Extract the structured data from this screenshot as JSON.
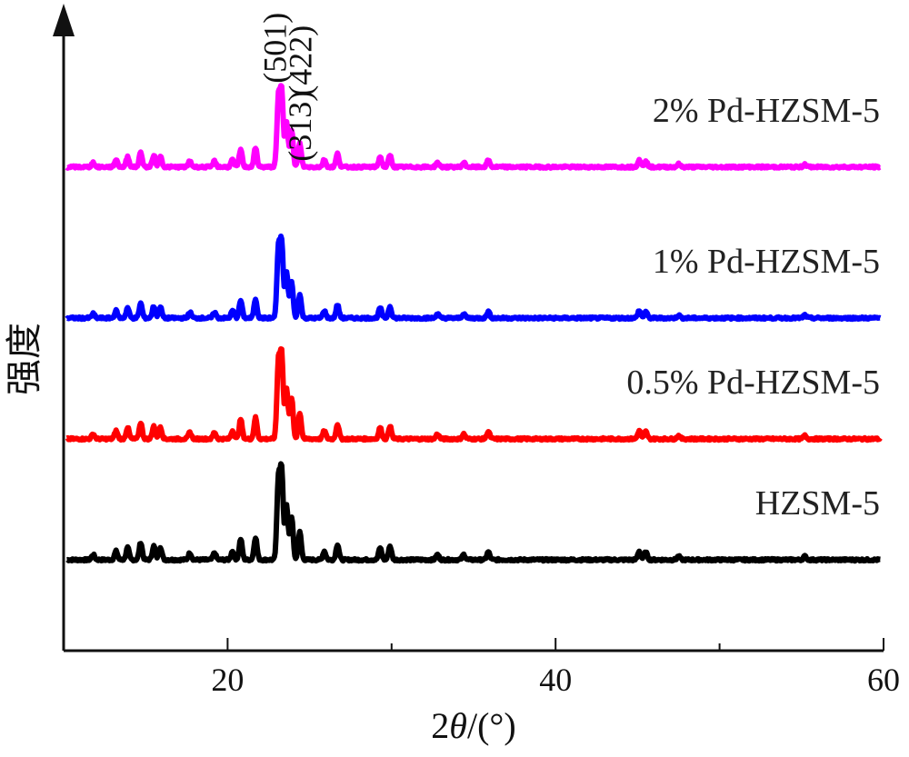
{
  "chart_data": {
    "type": "line",
    "xlabel": "2θ/(°)",
    "xlabel_prefix": "2",
    "xlabel_theta": "θ",
    "xlabel_suffix": "/(°)",
    "ylabel": "强度",
    "xlim": [
      10,
      60
    ],
    "x_ticks": [
      20,
      40,
      60
    ],
    "y_ticks": [],
    "grid": false,
    "legend": "none",
    "peaks_deg": [
      7.9,
      8.8,
      14.8,
      20.9,
      22.1,
      23.1,
      23.3,
      23.7,
      24.0,
      24.4,
      26.7,
      29.3,
      29.9,
      45.1,
      45.5
    ],
    "peak_labels": [
      {
        "text": "(501)",
        "x": 23.1
      },
      {
        "text": "(313)",
        "x": 24.4
      },
      {
        "text": "(422)",
        "x": 25.0
      }
    ],
    "series": [
      {
        "name": "HZSM-5",
        "color": "#000000",
        "baseline": 0.0,
        "scale": 1.0
      },
      {
        "name": "0.5% Pd-HZSM-5",
        "color": "#ff0000",
        "baseline": 1.0,
        "scale": 0.95
      },
      {
        "name": "1% Pd-HZSM-5",
        "color": "#0000ff",
        "baseline": 2.0,
        "scale": 0.85
      },
      {
        "name": "2% Pd-HZSM-5",
        "color": "#ff00ff",
        "baseline": 3.25,
        "scale": 0.85
      }
    ]
  }
}
